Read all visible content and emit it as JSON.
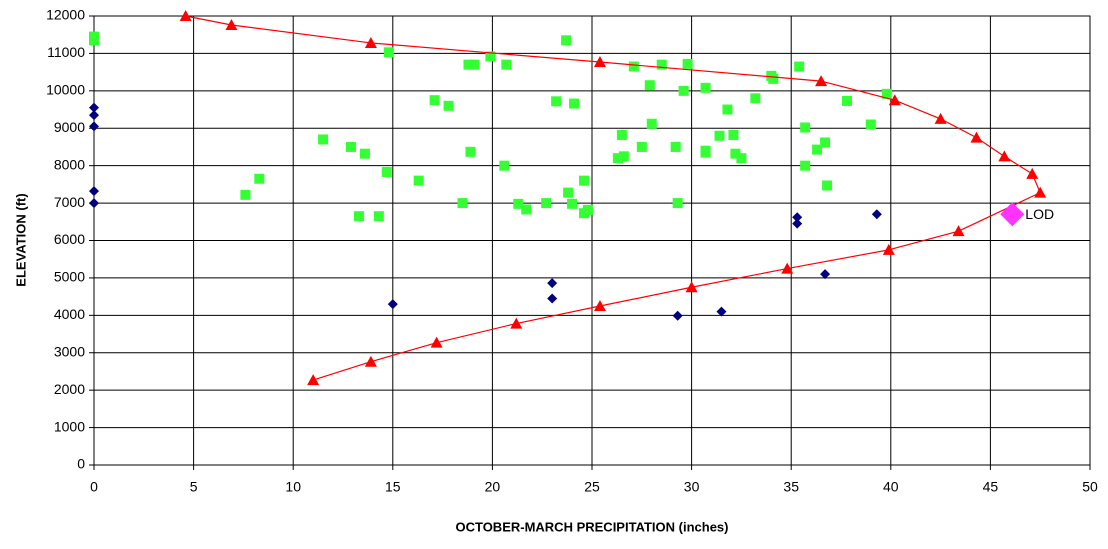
{
  "chart_data": {
    "type": "scatter",
    "xlabel": "OCTOBER-MARCH PRECIPITATION (inches)",
    "ylabel": "ELEVATION (ft)",
    "xlim": [
      0,
      50
    ],
    "xticks": [
      0,
      5,
      10,
      15,
      20,
      25,
      30,
      35,
      40,
      45,
      50
    ],
    "ylim": [
      0,
      12000
    ],
    "yticks": [
      0,
      1000,
      2000,
      3000,
      4000,
      5000,
      6000,
      7000,
      8000,
      9000,
      10000,
      11000,
      12000
    ],
    "grid": true,
    "series": [
      {
        "color": "#000080",
        "marker": "diamond",
        "line": false,
        "x": [
          0,
          0,
          0,
          0,
          0,
          15,
          23.0,
          23.0,
          29.3,
          31.5,
          35.3,
          35.3,
          36.7,
          39.3
        ],
        "values": [
          9550,
          9350,
          9050,
          7320,
          7000,
          4300,
          4860,
          4450,
          3990,
          4100,
          6620,
          6450,
          5100,
          6700
        ]
      },
      {
        "color": "#33ff33",
        "marker": "square",
        "line": false,
        "x": [
          0,
          0,
          7.6,
          8.3,
          11.5,
          12.9,
          13.6,
          13.3,
          14.3,
          14.7,
          14.8,
          16.3,
          17.1,
          17.8,
          18.5,
          18.8,
          19.1,
          18.9,
          19.9,
          20.6,
          20.7,
          21.3,
          21.7,
          22.7,
          23.2,
          23.7,
          23.8,
          24.0,
          24.1,
          24.6,
          24.6,
          24.8,
          26.3,
          26.5,
          26.6,
          27.1,
          27.5,
          27.9,
          28.0,
          28.5,
          29.2,
          29.3,
          29.6,
          29.8,
          30.7,
          30.7,
          30.7,
          31.4,
          31.8,
          32.1,
          32.2,
          32.5,
          33.2,
          34.0,
          34.1,
          35.4,
          35.7,
          35.7,
          36.3,
          36.7,
          36.8,
          37.8,
          39.0,
          39.8
        ],
        "values": [
          11450,
          11350,
          7220,
          7650,
          8700,
          8500,
          8320,
          6650,
          6650,
          7830,
          11030,
          7600,
          9750,
          9600,
          7000,
          10700,
          10700,
          8370,
          10920,
          8000,
          10700,
          6980,
          6830,
          7000,
          9720,
          11350,
          7280,
          6980,
          9660,
          7600,
          6730,
          6820,
          8200,
          8820,
          8250,
          10650,
          8500,
          10150,
          9120,
          10700,
          8500,
          7000,
          10000,
          10720,
          8400,
          8350,
          10080,
          8800,
          9500,
          8820,
          8320,
          8200,
          9800,
          10400,
          10320,
          10650,
          9020,
          8000,
          8430,
          8620,
          7470,
          9730,
          9100,
          9920
        ]
      },
      {
        "color": "#ff0000",
        "marker": "triangle",
        "line": true,
        "x": [
          4.6,
          6.9,
          13.9,
          25.4,
          36.5,
          40.2,
          42.5,
          44.3,
          45.7,
          47.1,
          47.5,
          43.4,
          39.9,
          34.8,
          30.0,
          25.4,
          21.2,
          17.2,
          13.9,
          11.0
        ],
        "values": [
          12000,
          11760,
          11280,
          10770,
          10260,
          9750,
          9250,
          8750,
          8250,
          7780,
          7280,
          6250,
          5750,
          5250,
          4750,
          4250,
          3780,
          3270,
          2760,
          2270
        ]
      },
      {
        "color": "#ff33ff",
        "marker": "bigdiamond",
        "line": false,
        "label": "LOD",
        "x": [
          46.1
        ],
        "values": [
          6700
        ]
      }
    ]
  }
}
